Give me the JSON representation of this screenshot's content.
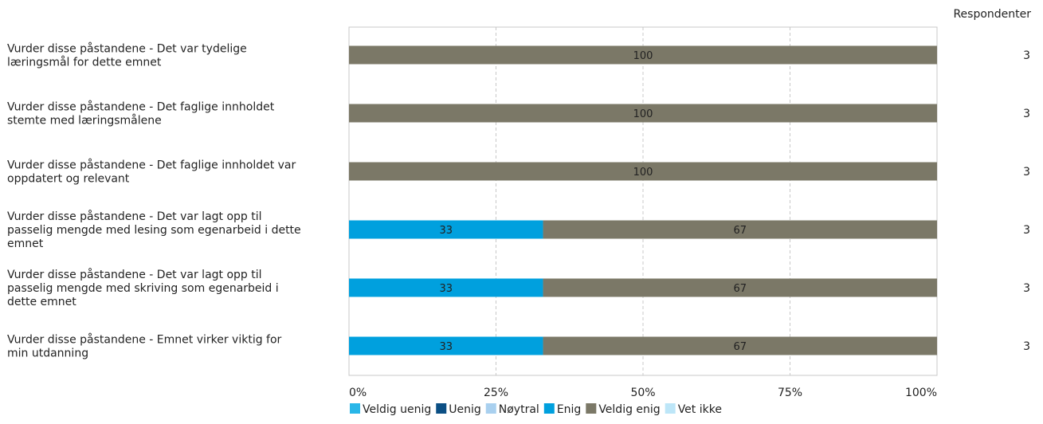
{
  "header": {
    "respondents_label": "Respondenter"
  },
  "colors": {
    "Veldig uenig": "#29b6e8",
    "Uenig": "#0b4f84",
    "Nøytral": "#a9d0ef",
    "Enig": "#00a0de",
    "Veldig enig": "#7b7867",
    "Vet ikke": "#bde6f8"
  },
  "chart_data": {
    "type": "bar",
    "orientation": "horizontal",
    "stacked": true,
    "categories": [
      [
        "Vurder disse påstandene  - Det var tydelige",
        "læringsmål for dette emnet"
      ],
      [
        "Vurder disse påstandene  - Det faglige innholdet",
        "stemte med læringsmålene"
      ],
      [
        "Vurder disse påstandene  - Det faglige innholdet var",
        "oppdatert og relevant"
      ],
      [
        "Vurder disse påstandene  - Det var lagt opp til",
        "passelig mengde med lesing som egenarbeid i dette",
        "emnet"
      ],
      [
        "Vurder disse påstandene  - Det var lagt opp til",
        "passelig mengde med skriving som egenarbeid i",
        "dette emnet"
      ],
      [
        "Vurder disse påstandene  - Emnet virker viktig for",
        "min utdanning"
      ]
    ],
    "series": [
      {
        "name": "Veldig uenig",
        "values": [
          0,
          0,
          0,
          0,
          0,
          0
        ]
      },
      {
        "name": "Uenig",
        "values": [
          0,
          0,
          0,
          0,
          0,
          0
        ]
      },
      {
        "name": "Nøytral",
        "values": [
          0,
          0,
          0,
          0,
          0,
          0
        ]
      },
      {
        "name": "Enig",
        "values": [
          0,
          0,
          0,
          33,
          33,
          33
        ]
      },
      {
        "name": "Veldig enig",
        "values": [
          100,
          100,
          100,
          67,
          67,
          67
        ]
      },
      {
        "name": "Vet ikke",
        "values": [
          0,
          0,
          0,
          0,
          0,
          0
        ]
      }
    ],
    "respondents": [
      3,
      3,
      3,
      3,
      3,
      3
    ],
    "xlim": [
      0,
      100
    ],
    "xticks": [
      "0%",
      "25%",
      "50%",
      "75%",
      "100%"
    ],
    "grid": true,
    "legend_position": "bottom"
  }
}
